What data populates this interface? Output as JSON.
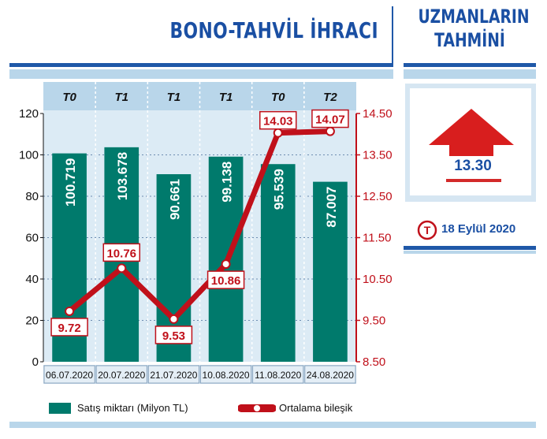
{
  "header": {
    "title": "BONO-TAHVİL İHRACI"
  },
  "sidebar": {
    "title_line1": "UZMANLARIN",
    "title_line2": "TAHMİNİ",
    "forecast_value": "13.30",
    "date_text": "18 Eylül 2020",
    "logo_letter": "T"
  },
  "colors": {
    "bar": "#007a6c",
    "line": "#c0101a",
    "accent_blue": "#1a4fa3",
    "light_blue": "#b9d6ea"
  },
  "legend": {
    "bar_label": "Satış miktarı (Milyon TL)",
    "line_label": "Ortalama bileşik"
  },
  "chart_data": {
    "type": "bar",
    "categories": [
      "06.07.2020",
      "20.07.2020",
      "21.07.2020",
      "10.08.2020",
      "11.08.2020",
      "24.08.2020"
    ],
    "top_labels": [
      "T0",
      "T1",
      "T1",
      "T1",
      "T0",
      "T2"
    ],
    "series": [
      {
        "name": "Satış miktarı (Milyon TL)",
        "type": "bar",
        "values": [
          100.719,
          103.678,
          90.661,
          99.138,
          95.539,
          87.007
        ],
        "labels": [
          "100.719",
          "103.678",
          "90.661",
          "99.138",
          "95.539",
          "87.007"
        ]
      },
      {
        "name": "Ortalama bileşik",
        "type": "line",
        "values": [
          9.72,
          10.76,
          9.53,
          10.86,
          14.03,
          14.07
        ],
        "labels": [
          "9.72",
          "10.76",
          "9.53",
          "10.86",
          "14.03",
          "14.07"
        ]
      }
    ],
    "y_left": {
      "min": 0,
      "max": 120,
      "ticks": [
        "0",
        "20",
        "40",
        "60",
        "80",
        "100",
        "120"
      ]
    },
    "y_right": {
      "min": 8.5,
      "max": 14.5,
      "ticks": [
        "8.50",
        "9.50",
        "10.50",
        "11.50",
        "12.50",
        "13.50",
        "14.50"
      ]
    }
  }
}
